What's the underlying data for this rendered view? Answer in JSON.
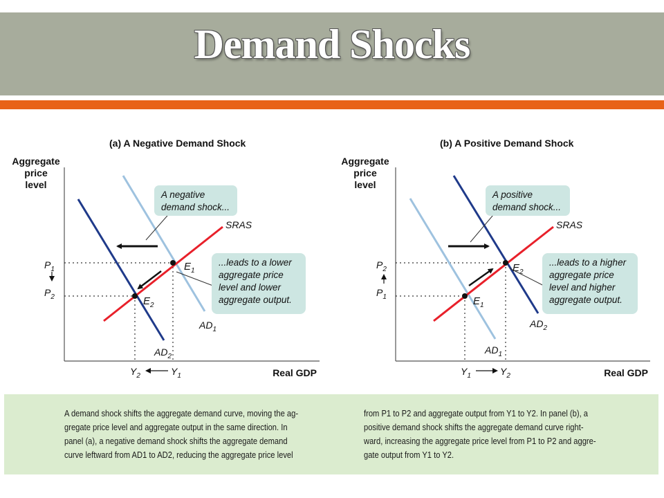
{
  "slide": {
    "title": "Demand Shocks"
  },
  "colors": {
    "header": "#a7ac9c",
    "rule": "#e86218",
    "sras": "#e8202a",
    "ad_dark": "#1f3a8a",
    "ad_light": "#9ec2df",
    "callout": "#cde6e2",
    "caption_bg": "#dbeccf"
  },
  "panel_a": {
    "title": "(a) A Negative Demand Shock",
    "y_axis_label": [
      "Aggregate",
      "price",
      "level"
    ],
    "x_axis_label": "Real GDP",
    "sras_label": "SRAS",
    "ad1_label": "AD",
    "ad1_sub": "1",
    "ad2_label": "AD",
    "ad2_sub": "2",
    "e1_label": "E",
    "e1_sub": "1",
    "e2_label": "E",
    "e2_sub": "2",
    "p_top": "P",
    "p_top_sub": "1",
    "p_bottom": "P",
    "p_bottom_sub": "2",
    "y_left": "Y",
    "y_left_sub": "2",
    "y_right": "Y",
    "y_right_sub": "1",
    "callout1": [
      "A negative",
      "demand shock..."
    ],
    "callout2": [
      "...leads to a lower",
      "aggregate price",
      "level and lower",
      "aggregate output."
    ]
  },
  "panel_b": {
    "title": "(b) A Positive Demand Shock",
    "y_axis_label": [
      "Aggregate",
      "price",
      "level"
    ],
    "x_axis_label": "Real GDP",
    "sras_label": "SRAS",
    "ad1_label": "AD",
    "ad1_sub": "1",
    "ad2_label": "AD",
    "ad2_sub": "2",
    "e1_label": "E",
    "e1_sub": "1",
    "e2_label": "E",
    "e2_sub": "2",
    "p_top": "P",
    "p_top_sub": "2",
    "p_bottom": "P",
    "p_bottom_sub": "1",
    "y_left": "Y",
    "y_left_sub": "1",
    "y_right": "Y",
    "y_right_sub": "2",
    "callout1": [
      "A positive",
      "demand shock..."
    ],
    "callout2": [
      "...leads to a higher",
      "aggregate price",
      "level and higher",
      "aggregate output."
    ]
  },
  "caption": {
    "left": [
      "A demand shock shifts the aggregate demand curve, moving the ag-",
      "gregate price level and aggregate output in the same direction. In",
      "panel (a), a negative demand shock shifts the aggregate demand",
      "curve leftward from AD1 to AD2, reducing the aggregate price level"
    ],
    "right": [
      "from P1 to P2 and aggregate output from Y1 to Y2. In panel (b), a",
      "positive demand shock shifts the aggregate demand curve right-",
      "ward, increasing the aggregate price level from P1 to P2 and aggre-",
      "gate output from Y1 to Y2."
    ]
  }
}
